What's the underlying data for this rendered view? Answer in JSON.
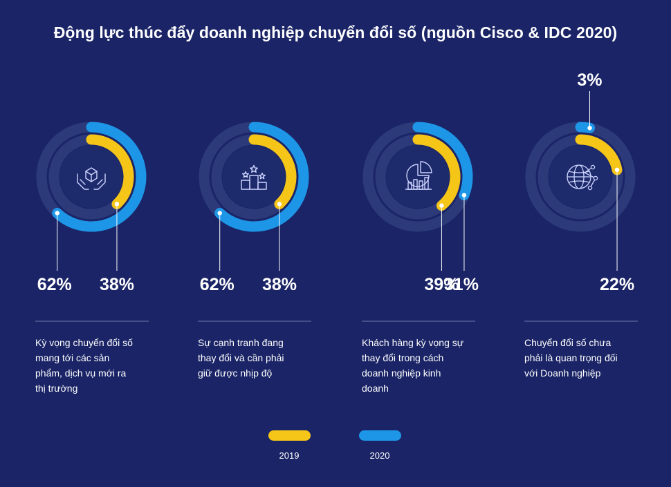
{
  "title": "Động lực thúc đẩy doanh nghiệp chuyển đổi số (nguồn Cisco & IDC 2020)",
  "colors": {
    "background": "#1a2466",
    "track": "#2c3a7a",
    "inner": "#1d2a6c",
    "y2019": "#f5c518",
    "y2020": "#1e96e8"
  },
  "chart_data": {
    "type": "donut",
    "title": "Động lực thúc đẩy doanh nghiệp chuyển đổi số (nguồn Cisco & IDC 2020)",
    "legend": [
      {
        "name": "2019",
        "color": "#f5c518"
      },
      {
        "name": "2020",
        "color": "#1e96e8"
      }
    ],
    "items": [
      {
        "icon": "hands-box-icon",
        "value_2019": 38,
        "value_2020": 62,
        "label_2019": "38%",
        "label_2020": "62%",
        "description": [
          "Kỳ vọng chuyển đổi số",
          "mang tới các sản",
          "phẩm, dịch vụ mới ra",
          "thị trường"
        ]
      },
      {
        "icon": "podium-stars-icon",
        "value_2019": 38,
        "value_2020": 62,
        "label_2019": "38%",
        "label_2020": "62%",
        "description": [
          "Sự cạnh tranh đang",
          "thay đổi và cần phải",
          "giữ được nhịp độ"
        ]
      },
      {
        "icon": "pie-bar-chart-icon",
        "value_2019": 39,
        "value_2020": 31,
        "label_2019": "39%",
        "label_2020": "31%",
        "description": [
          "Khách hàng kỳ vọng sự",
          "thay đổi trong cách",
          "doanh nghiệp kinh",
          "doanh"
        ]
      },
      {
        "icon": "globe-network-icon",
        "value_2019": 22,
        "value_2020": 3,
        "label_2019": "22%",
        "label_2020": "3%",
        "description": [
          "Chuyển đổi số chưa",
          "phải là quan trọng đối",
          "với Doanh nghiệp"
        ]
      }
    ]
  }
}
